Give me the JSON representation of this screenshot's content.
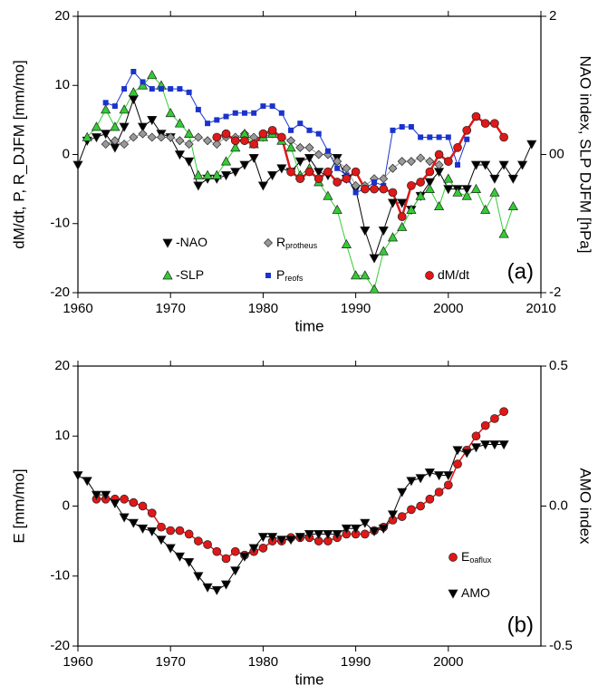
{
  "chart_data": [
    {
      "type": "line",
      "label": "(a)",
      "x_label": "time",
      "y_label": "dM/dt, P, R_DJFM [mm/mo]",
      "y2_label": "NAO index, SLP DJFM [hPa]",
      "xlim": [
        1960,
        2010
      ],
      "xticks": [
        1960,
        1970,
        1980,
        1990,
        2000,
        2010
      ],
      "ylim": [
        -20,
        20
      ],
      "yticks": [
        -20,
        -10,
        0,
        10,
        20
      ],
      "y2lim": [
        -2,
        2
      ],
      "y2ticks": [
        -2,
        {
          "value": 0,
          "label": "00"
        },
        2
      ],
      "series": [
        {
          "name": "-NAO",
          "axis": "y2",
          "color": "#000000",
          "marker": "triangle-down",
          "line_width": 1,
          "x": [
            1960,
            1961,
            1962,
            1963,
            1964,
            1965,
            1966,
            1967,
            1968,
            1969,
            1970,
            1971,
            1972,
            1973,
            1974,
            1975,
            1976,
            1977,
            1978,
            1979,
            1980,
            1981,
            1982,
            1983,
            1984,
            1985,
            1986,
            1987,
            1988,
            1989,
            1990,
            1991,
            1992,
            1993,
            1994,
            1995,
            1996,
            1997,
            1998,
            1999,
            2000,
            2001,
            2002,
            2003,
            2004,
            2005,
            2006,
            2007,
            2008,
            2009
          ],
          "values": [
            -0.15,
            0.2,
            0.25,
            0.3,
            0.1,
            0.4,
            0.8,
            0.4,
            0.5,
            0.3,
            0.25,
            0,
            -0.1,
            -0.45,
            -0.35,
            -0.35,
            -0.3,
            -0.25,
            -0.15,
            -0.05,
            -0.45,
            -0.3,
            -0.2,
            -0.25,
            -0.1,
            -0.05,
            -0.25,
            -0.3,
            -0.05,
            -0.35,
            -0.5,
            -1.1,
            -1.5,
            -1.1,
            -0.7,
            -0.7,
            -0.8,
            -0.6,
            -0.4,
            -0.25,
            -0.5,
            -0.5,
            -0.5,
            -0.15,
            -0.15,
            -0.35,
            -0.15,
            -0.35,
            -0.15,
            0.15
          ]
        },
        {
          "name": "R",
          "subscript": "protheus",
          "color": "#999999",
          "marker": "diamond",
          "line_width": 1,
          "x": [
            1963,
            1964,
            1965,
            1966,
            1967,
            1968,
            1969,
            1970,
            1971,
            1972,
            1973,
            1974,
            1975,
            1976,
            1977,
            1978,
            1979,
            1980,
            1981,
            1982,
            1983,
            1984,
            1985,
            1986,
            1987,
            1988,
            1989,
            1990,
            1991,
            1992,
            1993,
            1994,
            1995,
            1996,
            1997,
            1998,
            1999
          ],
          "values": [
            1.5,
            2,
            1.5,
            2.5,
            3,
            2.5,
            2.5,
            2.5,
            2,
            1.5,
            2.5,
            2,
            1.5,
            2.5,
            2.5,
            3,
            2.5,
            2.5,
            3,
            2.5,
            2,
            1,
            1,
            0,
            0,
            -1,
            -2,
            -4.5,
            -4.5,
            -3.5,
            -3.5,
            -2,
            -1,
            -1,
            -0.5,
            -1,
            -1.5
          ]
        },
        {
          "name": "-SLP",
          "axis": "y2",
          "color": "#33cc33",
          "marker": "triangle-up",
          "line_width": 1,
          "x": [
            1961,
            1962,
            1963,
            1964,
            1965,
            1966,
            1967,
            1968,
            1969,
            1970,
            1971,
            1972,
            1973,
            1974,
            1975,
            1976,
            1977,
            1978,
            1979,
            1980,
            1981,
            1982,
            1983,
            1984,
            1985,
            1986,
            1987,
            1988,
            1989,
            1990,
            1991,
            1992,
            1993,
            1994,
            1995,
            1996,
            1997,
            1998,
            1999,
            2000,
            2001,
            2002,
            2003,
            2004,
            2005,
            2006,
            2007
          ],
          "values": [
            0.25,
            0.4,
            0.65,
            0.4,
            0.65,
            0.9,
            1.0,
            1.15,
            1.0,
            0.6,
            0.45,
            0.3,
            -0.3,
            -0.3,
            -0.3,
            -0.1,
            0.1,
            0.3,
            0.15,
            0.25,
            0.3,
            0.2,
            0.1,
            -0.3,
            -0.2,
            -0.4,
            -0.6,
            -0.8,
            -1.3,
            -1.75,
            -1.75,
            -1.95,
            -1.4,
            -1.2,
            -1.05,
            -0.8,
            -0.6,
            -0.5,
            -0.75,
            -0.35,
            -0.55,
            -0.6,
            -0.5,
            -0.8,
            -0.55,
            -1.15,
            -0.75
          ]
        },
        {
          "name": "P",
          "subscript": "reofs",
          "color": "#1a33cc",
          "marker": "square",
          "line_width": 1,
          "x": [
            1963,
            1964,
            1965,
            1966,
            1967,
            1968,
            1969,
            1970,
            1971,
            1972,
            1973,
            1974,
            1975,
            1976,
            1977,
            1978,
            1979,
            1980,
            1981,
            1982,
            1983,
            1984,
            1985,
            1986,
            1987,
            1988,
            1989,
            1990,
            1991,
            1992,
            1993,
            1994,
            1995,
            1996,
            1997,
            1998,
            1999,
            2000,
            2001,
            2002
          ],
          "values": [
            7.5,
            7,
            9.5,
            12,
            10.5,
            9.5,
            9.5,
            9.5,
            9.5,
            9,
            6.5,
            4.5,
            5,
            5.5,
            6,
            6,
            6,
            7,
            7,
            6,
            3.5,
            4.5,
            3.5,
            3,
            0.5,
            -2,
            -3,
            -5.5,
            -5,
            -4,
            -4.5,
            3.5,
            4,
            4,
            2.5,
            2.5,
            2.5,
            2.5,
            -1.5,
            2.2
          ]
        },
        {
          "name": "dM/dt",
          "color": "#e01818",
          "marker": "circle",
          "line_width": 2.5,
          "x": [
            1975,
            1976,
            1977,
            1978,
            1979,
            1980,
            1981,
            1982,
            1983,
            1984,
            1985,
            1986,
            1987,
            1988,
            1989,
            1990,
            1991,
            1992,
            1993,
            1994,
            1995,
            1996,
            1997,
            1998,
            1999,
            2000,
            2001,
            2002,
            2003,
            2004,
            2005,
            2006
          ],
          "values": [
            2.5,
            3,
            2,
            2,
            1.5,
            3,
            3.5,
            2.5,
            -2.5,
            -3.5,
            -2.5,
            -3.5,
            -2.5,
            -4,
            -3.5,
            -2.5,
            -5,
            -5,
            -5,
            -5.5,
            -9,
            -4.5,
            -4,
            -2.5,
            0,
            -1,
            1,
            3.5,
            5.5,
            4.5,
            4.5,
            2.5
          ]
        }
      ]
    },
    {
      "type": "line",
      "label": "(b)",
      "x_label": "time",
      "y_label": "E [mm/mo]",
      "y2_label": "AMO index",
      "xlim": [
        1960,
        2010
      ],
      "xticks": [
        1960,
        1970,
        1980,
        1990,
        2000
      ],
      "ylim": [
        -20,
        20
      ],
      "yticks": [
        -20,
        -10,
        0,
        10,
        20
      ],
      "y2lim": [
        -0.5,
        0.5
      ],
      "y2ticks": [
        -0.5,
        {
          "value": 0,
          "label": "0.0"
        },
        0.5
      ],
      "series": [
        {
          "name": "E",
          "subscript": "oaflux",
          "color": "#e01818",
          "marker": "circle",
          "line_width": 1.5,
          "x": [
            1962,
            1963,
            1964,
            1965,
            1966,
            1967,
            1968,
            1969,
            1970,
            1971,
            1972,
            1973,
            1974,
            1975,
            1976,
            1977,
            1978,
            1979,
            1980,
            1981,
            1982,
            1983,
            1984,
            1985,
            1986,
            1987,
            1988,
            1989,
            1990,
            1991,
            1992,
            1993,
            1994,
            1995,
            1996,
            1997,
            1998,
            1999,
            2000,
            2001,
            2002,
            2003,
            2004,
            2005,
            2006
          ],
          "values": [
            1,
            1,
            1,
            1,
            0.5,
            0,
            -1,
            -3,
            -3.5,
            -3.5,
            -4,
            -5,
            -5.5,
            -6.5,
            -7.5,
            -6.5,
            -7,
            -6.5,
            -6,
            -5,
            -5,
            -4.5,
            -4.5,
            -4.5,
            -5,
            -5,
            -4.5,
            -4,
            -4,
            -4,
            -3.5,
            -3,
            -2,
            -1.5,
            -0.5,
            0,
            1,
            2,
            3,
            6,
            8,
            10,
            11.5,
            12.5,
            13.5
          ]
        },
        {
          "name": "AMO",
          "axis": "y2",
          "color": "#000000",
          "marker": "triangle-down",
          "line_width": 1,
          "x": [
            1960,
            1961,
            1962,
            1963,
            1964,
            1965,
            1966,
            1967,
            1968,
            1969,
            1970,
            1971,
            1972,
            1973,
            1974,
            1975,
            1976,
            1977,
            1978,
            1979,
            1980,
            1981,
            1982,
            1983,
            1984,
            1985,
            1986,
            1987,
            1988,
            1989,
            1990,
            1991,
            1992,
            1993,
            1994,
            1995,
            1996,
            1997,
            1998,
            1999,
            2000,
            2001,
            2002,
            2003,
            2004,
            2005,
            2006
          ],
          "values": [
            0.11,
            0.09,
            0.04,
            0.04,
            0.01,
            -0.04,
            -0.06,
            -0.08,
            -0.09,
            -0.12,
            -0.15,
            -0.18,
            -0.2,
            -0.25,
            -0.29,
            -0.3,
            -0.28,
            -0.23,
            -0.18,
            -0.15,
            -0.11,
            -0.11,
            -0.12,
            -0.12,
            -0.11,
            -0.1,
            -0.1,
            -0.1,
            -0.1,
            -0.08,
            -0.08,
            -0.06,
            -0.09,
            -0.08,
            -0.03,
            0.05,
            0.09,
            0.1,
            0.12,
            0.11,
            0.11,
            0.2,
            0.19,
            0.21,
            0.22,
            0.22,
            0.22
          ]
        }
      ]
    }
  ]
}
